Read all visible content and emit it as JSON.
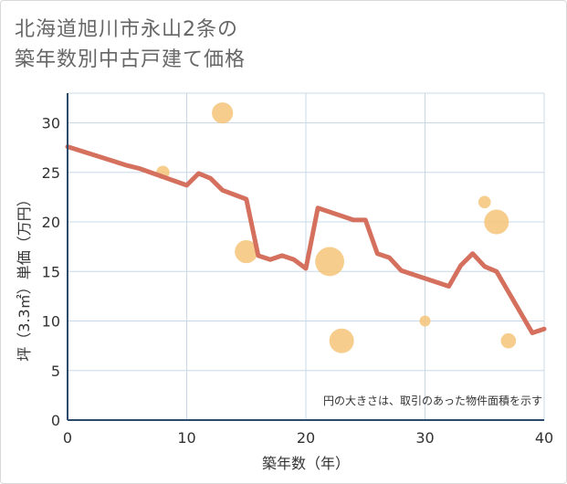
{
  "title_lines": [
    "北海道旭川市永山2条の",
    "築年数別中古戸建て価格"
  ],
  "colors": {
    "line": "#d4705d",
    "bubble": "#f5c478",
    "grid": "#c8d8e8",
    "axis": "#2c4a6b"
  },
  "chart_data": {
    "type": "line+bubble",
    "xlabel": "築年数（年）",
    "ylabel": "坪（3.3㎡）単価（万円）",
    "xlim": [
      0,
      40
    ],
    "ylim": [
      0,
      33
    ],
    "x_ticks": [
      0,
      10,
      20,
      30,
      40
    ],
    "y_ticks": [
      0,
      5,
      10,
      15,
      20,
      25,
      30
    ],
    "note": "円の大きさは、取引のあった物件面積を示す",
    "line": {
      "x": [
        0,
        5,
        6,
        10,
        11,
        12,
        13,
        15,
        16,
        17,
        18,
        19,
        20,
        21,
        24,
        25,
        26,
        27,
        28,
        32,
        33,
        34,
        35,
        36,
        39,
        40
      ],
      "y": [
        27.6,
        25.7,
        25.4,
        23.7,
        24.9,
        24.4,
        23.2,
        22.3,
        16.6,
        16.2,
        16.6,
        16.2,
        15.3,
        21.4,
        20.2,
        20.2,
        16.8,
        16.4,
        15.1,
        13.5,
        15.6,
        16.8,
        15.5,
        15.0,
        8.8,
        9.2
      ]
    },
    "bubbles": [
      {
        "x": 8,
        "y": 25.0,
        "size": 1
      },
      {
        "x": 13,
        "y": 31.0,
        "size": 4
      },
      {
        "x": 15,
        "y": 17.0,
        "size": 5
      },
      {
        "x": 22,
        "y": 16.0,
        "size": 9
      },
      {
        "x": 23,
        "y": 8.0,
        "size": 6
      },
      {
        "x": 30,
        "y": 10.0,
        "size": 0.5
      },
      {
        "x": 35,
        "y": 22.0,
        "size": 0.8
      },
      {
        "x": 36,
        "y": 20.0,
        "size": 6
      },
      {
        "x": 37,
        "y": 8.0,
        "size": 1.5
      }
    ]
  }
}
